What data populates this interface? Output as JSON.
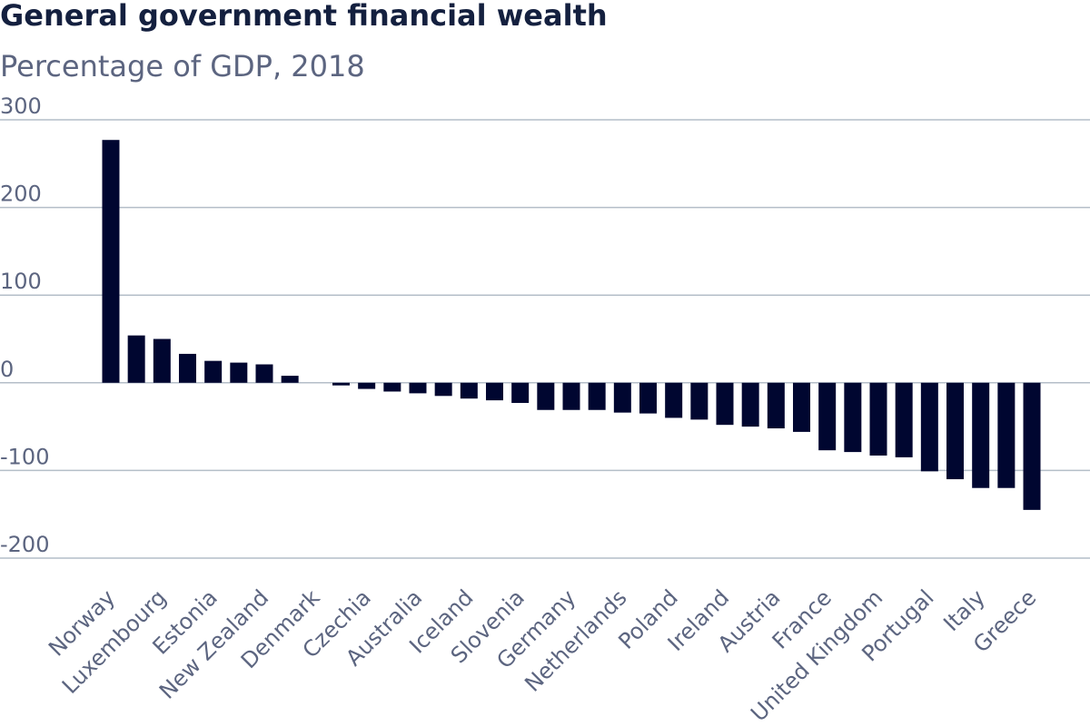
{
  "chart_data": {
    "type": "bar",
    "title": "General government financial wealth",
    "subtitle": "Percentage of GDP, 2018",
    "categories": [
      "Norway",
      null,
      "Luxembourg",
      null,
      "Estonia",
      null,
      "New Zealand",
      null,
      "Denmark",
      null,
      "Czechia",
      null,
      "Australia",
      null,
      "Iceland",
      null,
      "Slovenia",
      null,
      "Germany",
      null,
      "Netherlands",
      null,
      "Poland",
      null,
      "Ireland",
      null,
      "Austria",
      null,
      "France",
      null,
      "United Kingdom",
      null,
      "Portugal",
      null,
      "Italy",
      null,
      "Greece"
    ],
    "values": [
      277,
      54,
      50,
      33,
      25,
      23,
      21,
      8,
      0,
      -3,
      -7,
      -10,
      -12,
      -15,
      -18,
      -20,
      -23,
      -31,
      -31,
      -31,
      -34,
      -35,
      -40,
      -42,
      -48,
      -50,
      -52,
      -56,
      -77,
      -79,
      -83,
      -85,
      -101,
      -110,
      -120,
      -120,
      -145
    ],
    "color": "#000630",
    "ylim": [
      -200,
      300
    ],
    "yticks": [
      -200,
      -100,
      0,
      100,
      200,
      300
    ],
    "grid": true
  }
}
